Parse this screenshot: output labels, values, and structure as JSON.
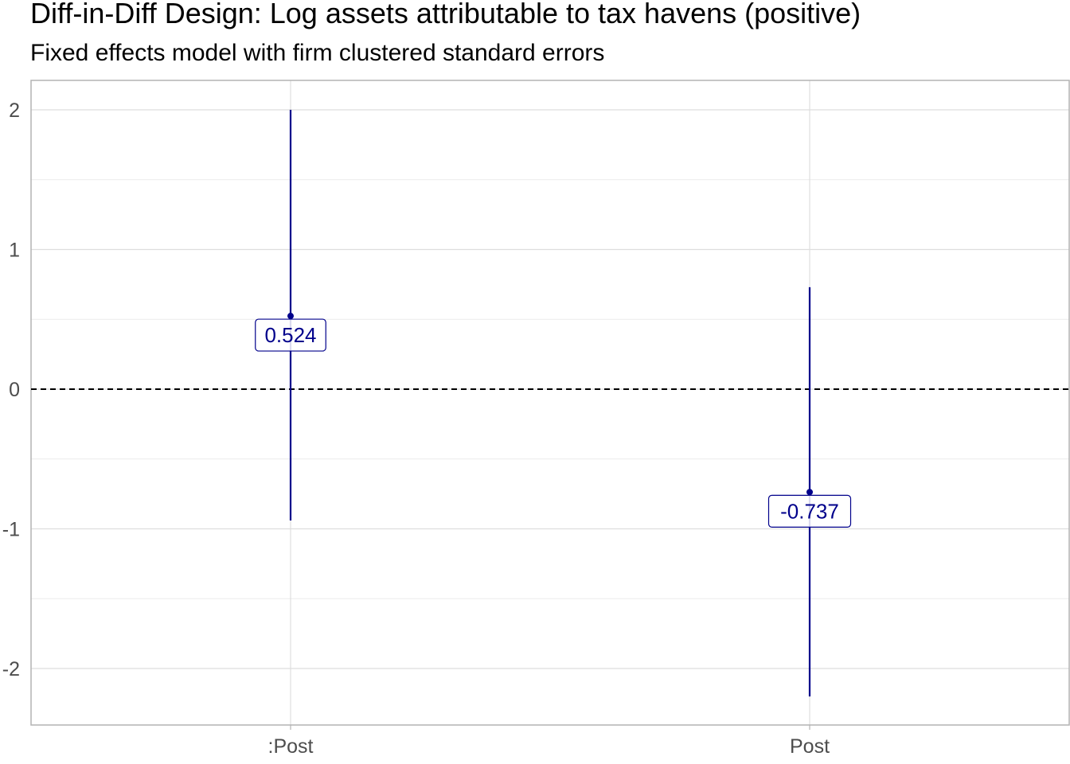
{
  "chart_data": {
    "type": "errorbar",
    "title": "Diff-in-Diff Design: Log assets attributable to tax havens (positive)",
    "subtitle": "Fixed effects model with firm clustered standard errors",
    "xlabel": "",
    "ylabel": "",
    "categories": [
      ":Post",
      "Post"
    ],
    "estimates": [
      0.524,
      -0.737
    ],
    "lower": [
      -0.94,
      -2.2
    ],
    "upper": [
      2.0,
      0.73
    ],
    "labels": [
      "0.524",
      "-0.737"
    ],
    "ylim": [
      -2.4,
      2.2
    ],
    "yticks": [
      -2,
      -1,
      0,
      1,
      2
    ],
    "reference_line": 0,
    "grid": true,
    "colors": {
      "series": "#00008B",
      "reference": "#000000"
    }
  }
}
